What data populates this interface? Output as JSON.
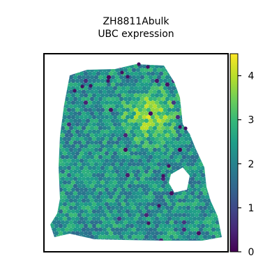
{
  "title_line1": "ZH8811Abulk",
  "title_line2": "UBC expression",
  "colormap": [
    "#440154",
    "#482878",
    "#3e4989",
    "#31688e",
    "#26828e",
    "#1f9e89",
    "#35b779",
    "#6ece58",
    "#b5de2b",
    "#fde725"
  ],
  "chart_data": {
    "type": "scatter",
    "title": "ZH8811Abulk\nUBC expression",
    "xlabel": "",
    "ylabel": "",
    "colorbar": {
      "range": [
        0,
        4.5
      ],
      "ticks": [
        0,
        1,
        2,
        3,
        4
      ],
      "tick_labels": [
        "0",
        "1",
        "2",
        "3",
        "4"
      ]
    },
    "value_encoding": "color (viridis)",
    "typical_value": 2.3,
    "max_value": 4.5,
    "min_value": 0,
    "high_region": "upper right of tissue (values 3.5–4.5)",
    "low_spots": "scattered dark purple spots near value 0",
    "grid": false,
    "axes_ticks": false
  }
}
